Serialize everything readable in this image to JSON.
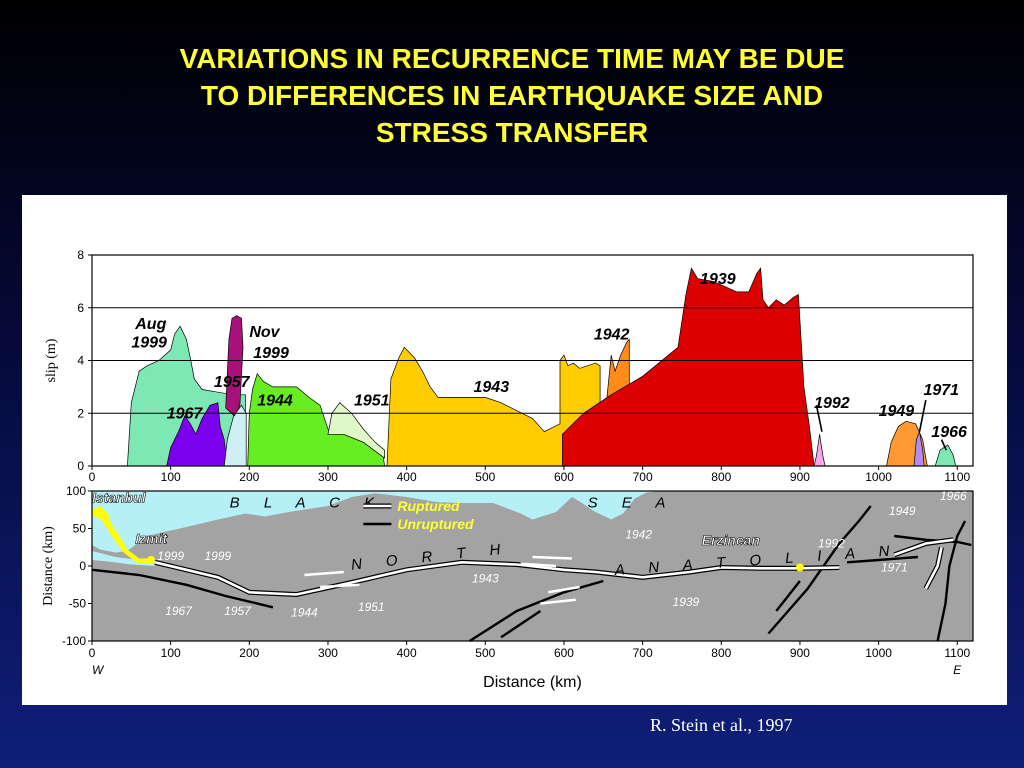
{
  "title_lines": [
    "VARIATIONS IN RECURRENCE TIME MAY BE DUE",
    "TO DIFFERENCES IN EARTHQUAKE SIZE AND",
    "STRESS TRANSFER"
  ],
  "credit": "R. Stein et al., 1997",
  "chart_data": [
    {
      "type": "area",
      "ylabel": "slip (m)",
      "xlim": [
        0,
        1120
      ],
      "ylim": [
        0,
        8
      ],
      "x_ticks": [
        0,
        100,
        200,
        300,
        400,
        500,
        600,
        700,
        800,
        900,
        1000,
        1100
      ],
      "y_ticks": [
        0,
        2,
        4,
        6,
        8
      ],
      "grid": true,
      "series": [
        {
          "name": "Aug 1999",
          "color": "#7ee8b4",
          "points": [
            [
              45,
              0
            ],
            [
              50,
              2.4
            ],
            [
              60,
              3.6
            ],
            [
              70,
              3.8
            ],
            [
              85,
              4.0
            ],
            [
              100,
              4.4
            ],
            [
              105,
              5.0
            ],
            [
              112,
              5.3
            ],
            [
              120,
              4.8
            ],
            [
              125,
              4.1
            ],
            [
              130,
              3.3
            ],
            [
              140,
              2.9
            ],
            [
              160,
              2.8
            ],
            [
              180,
              2.7
            ],
            [
              195,
              2.7
            ],
            [
              195,
              0
            ]
          ]
        },
        {
          "name": "1967",
          "color": "#7a00ee",
          "points": [
            [
              95,
              0
            ],
            [
              100,
              0.7
            ],
            [
              110,
              1.3
            ],
            [
              118,
              1.9
            ],
            [
              125,
              1.6
            ],
            [
              132,
              1.2
            ],
            [
              140,
              1.8
            ],
            [
              150,
              2.3
            ],
            [
              160,
              2.4
            ],
            [
              163,
              1.5
            ],
            [
              168,
              1.0
            ],
            [
              172,
              0
            ]
          ]
        },
        {
          "name": "1957",
          "color": "#cfeff7",
          "points": [
            [
              168,
              0
            ],
            [
              172,
              1.0
            ],
            [
              180,
              1.9
            ],
            [
              190,
              2.3
            ],
            [
              196,
              2.0
            ],
            [
              196,
              0
            ]
          ]
        },
        {
          "name": "Nov 1999",
          "color": "#a8107a",
          "points": [
            [
              170,
              2.2
            ],
            [
              174,
              4.8
            ],
            [
              178,
              5.6
            ],
            [
              184,
              5.7
            ],
            [
              190,
              5.6
            ],
            [
              192,
              4.5
            ],
            [
              188,
              2.3
            ],
            [
              181,
              1.9
            ]
          ]
        },
        {
          "name": "1944",
          "color": "#66ee22",
          "points": [
            [
              198,
              0
            ],
            [
              200,
              2.0
            ],
            [
              204,
              2.9
            ],
            [
              210,
              3.5
            ],
            [
              218,
              3.2
            ],
            [
              230,
              3.0
            ],
            [
              260,
              3.0
            ],
            [
              276,
              2.6
            ],
            [
              290,
              2.3
            ],
            [
              300,
              1.4
            ],
            [
              320,
              1.2
            ],
            [
              345,
              0.9
            ],
            [
              362,
              0.6
            ],
            [
              370,
              0.4
            ],
            [
              372,
              0
            ]
          ]
        },
        {
          "name": "1951",
          "color": "#e0f7c8",
          "points": [
            [
              300,
              1.2
            ],
            [
              305,
              2.0
            ],
            [
              315,
              2.4
            ],
            [
              330,
              2.0
            ],
            [
              345,
              1.4
            ],
            [
              360,
              0.9
            ],
            [
              372,
              0.6
            ],
            [
              372,
              0.3
            ],
            [
              345,
              0.9
            ],
            [
              320,
              1.2
            ]
          ]
        },
        {
          "name": "1943",
          "color": "#ffcc00",
          "points": [
            [
              375,
              0
            ],
            [
              380,
              3.3
            ],
            [
              390,
              4.1
            ],
            [
              397,
              4.5
            ],
            [
              410,
              4.1
            ],
            [
              420,
              3.6
            ],
            [
              430,
              3.0
            ],
            [
              440,
              2.6
            ],
            [
              500,
              2.6
            ],
            [
              520,
              2.4
            ],
            [
              560,
              1.8
            ],
            [
              575,
              1.3
            ],
            [
              595,
              1.6
            ],
            [
              595,
              4.0
            ],
            [
              600,
              4.2
            ],
            [
              605,
              3.8
            ],
            [
              612,
              3.9
            ],
            [
              620,
              3.7
            ],
            [
              640,
              3.9
            ],
            [
              646,
              3.8
            ],
            [
              646,
              1.6
            ],
            [
              625,
              1.1
            ],
            [
              600,
              1.0
            ],
            [
              598,
              0
            ]
          ]
        },
        {
          "name": "1942",
          "color": "#ff8c1a",
          "points": [
            [
              650,
              1.3
            ],
            [
              655,
              2.7
            ],
            [
              660,
              4.2
            ],
            [
              665,
              3.6
            ],
            [
              672,
              4.2
            ],
            [
              680,
              4.7
            ],
            [
              683,
              4.8
            ],
            [
              683,
              3.0
            ],
            [
              665,
              2.5
            ]
          ]
        },
        {
          "name": "1939",
          "color": "#dd0000",
          "points": [
            [
              598,
              0
            ],
            [
              598,
              1.2
            ],
            [
              625,
              2.0
            ],
            [
              660,
              2.7
            ],
            [
              700,
              3.4
            ],
            [
              745,
              4.5
            ],
            [
              755,
              6.5
            ],
            [
              762,
              7.5
            ],
            [
              770,
              7.1
            ],
            [
              790,
              7.0
            ],
            [
              805,
              6.8
            ],
            [
              820,
              6.6
            ],
            [
              835,
              6.6
            ],
            [
              845,
              7.3
            ],
            [
              850,
              7.5
            ],
            [
              853,
              6.3
            ],
            [
              860,
              6.0
            ],
            [
              870,
              6.3
            ],
            [
              880,
              6.1
            ],
            [
              892,
              6.4
            ],
            [
              898,
              6.5
            ],
            [
              905,
              3.0
            ],
            [
              912,
              1.5
            ],
            [
              916,
              0.5
            ],
            [
              918,
              0
            ]
          ]
        },
        {
          "name": "1992",
          "color": "#f7a7e8",
          "points": [
            [
              918,
              0
            ],
            [
              921,
              0.4
            ],
            [
              925,
              1.2
            ],
            [
              929,
              0.4
            ],
            [
              932,
              0
            ]
          ]
        },
        {
          "name": "1949",
          "color": "#ff9933",
          "points": [
            [
              1010,
              0
            ],
            [
              1016,
              0.9
            ],
            [
              1025,
              1.5
            ],
            [
              1035,
              1.7
            ],
            [
              1047,
              1.6
            ],
            [
              1056,
              1.0
            ],
            [
              1060,
              0.3
            ],
            [
              1062,
              0
            ]
          ]
        },
        {
          "name": "1971",
          "color": "#b48cf0",
          "points": [
            [
              1045,
              0
            ],
            [
              1048,
              1.0
            ],
            [
              1052,
              1.3
            ],
            [
              1056,
              0.6
            ],
            [
              1058,
              0
            ]
          ]
        },
        {
          "name": "1966",
          "color": "#7ee8b4",
          "points": [
            [
              1072,
              0
            ],
            [
              1078,
              0.6
            ],
            [
              1088,
              0.8
            ],
            [
              1095,
              0.4
            ],
            [
              1098,
              0
            ]
          ]
        }
      ],
      "labels": [
        {
          "text": "Aug",
          "x": 55,
          "y": 5.2
        },
        {
          "text": "1999",
          "x": 50,
          "y": 4.5
        },
        {
          "text": "1967",
          "x": 95,
          "y": 1.8
        },
        {
          "text": "1957",
          "x": 155,
          "y": 3.0
        },
        {
          "text": "Nov",
          "x": 200,
          "y": 4.9
        },
        {
          "text": "1999",
          "x": 205,
          "y": 4.1
        },
        {
          "text": "1944",
          "x": 210,
          "y": 2.3
        },
        {
          "text": "1951",
          "x": 333,
          "y": 2.3
        },
        {
          "text": "1943",
          "x": 485,
          "y": 2.8
        },
        {
          "text": "1942",
          "x": 638,
          "y": 4.8
        },
        {
          "text": "1939",
          "x": 773,
          "y": 6.9
        },
        {
          "text": "1992",
          "x": 918,
          "y": 2.2
        },
        {
          "text": "1949",
          "x": 1000,
          "y": 1.9
        },
        {
          "text": "1971",
          "x": 1057,
          "y": 2.7
        },
        {
          "text": "1966",
          "x": 1067,
          "y": 1.1
        }
      ]
    },
    {
      "type": "map",
      "xlabel": "Distance (km)",
      "ylabel": "Distance (km)",
      "xlim": [
        0,
        1120
      ],
      "ylim": [
        -100,
        100
      ],
      "x_ticks": [
        0,
        100,
        200,
        300,
        400,
        500,
        600,
        700,
        800,
        900,
        1000,
        1100
      ],
      "y_ticks": [
        100,
        50,
        0,
        -50,
        -100
      ],
      "x_end_labels": {
        "left": "W",
        "right": "E"
      },
      "sea_label": [
        "B L A C K",
        "S E A"
      ],
      "fault_label": [
        "N O R T H",
        "A N A T O L I A N"
      ],
      "cities": [
        "Istanbul",
        "Izmit",
        "Erzincan"
      ],
      "legend": [
        "Ruptured",
        "Unruptured"
      ],
      "colors": {
        "land": "#a3a3a3",
        "sea": "#b5f0f7",
        "ruptured": "#ffffff",
        "unruptured": "#000000",
        "highlight": "#ffff00"
      },
      "rupture_years": [
        "1999",
        "1999",
        "1967",
        "1957",
        "1944",
        "1951",
        "1943",
        "1942",
        "1939",
        "1992",
        "1949",
        "1966",
        "1971"
      ]
    }
  ]
}
